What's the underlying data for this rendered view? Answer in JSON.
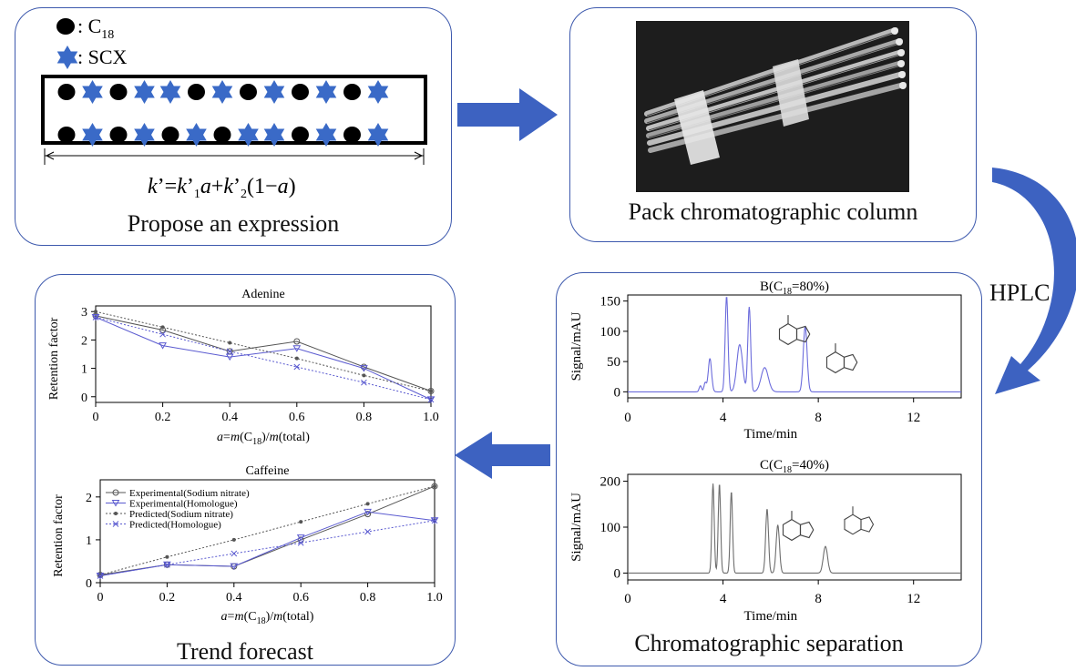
{
  "panels": {
    "expression": {
      "legend": [
        {
          "symbol": "circle",
          "label": ": C",
          "subscript": "18"
        },
        {
          "symbol": "star",
          "label": ": SCX"
        }
      ],
      "formula": {
        "k": "k",
        "prime1": "’=",
        "k1": "k",
        "prime2": "’",
        "sub1": "1",
        "a1": "a",
        "plus": "+",
        "k2": "k",
        "prime3": "’",
        "sub2": "2",
        "paren": "(1−",
        "a2": "a",
        "close": ")"
      },
      "caption": "Propose an expression",
      "column_pattern_top": [
        "circle",
        "star",
        "circle",
        "star",
        "star",
        "circle",
        "star",
        "circle",
        "star",
        "circle",
        "star",
        "circle",
        "star"
      ],
      "column_pattern_bottom": [
        "circle",
        "star",
        "circle",
        "star",
        "circle",
        "star",
        "circle",
        "star",
        "star",
        "circle",
        "star",
        "circle",
        "star"
      ]
    },
    "pack": {
      "caption": "Pack chromatographic column"
    },
    "separation": {
      "caption": "Chromatographic separation"
    },
    "forecast": {
      "caption": "Trend forecast"
    }
  },
  "hplc_label": "HPLC",
  "colors": {
    "border": "#3d59ad",
    "arrow": "#3d62c1",
    "star": "#3a6ac7",
    "blue_series": "#5a5ad0",
    "gray_series": "#555555"
  },
  "chart_data": [
    {
      "id": "adenine",
      "type": "line",
      "title": "Adenine",
      "xlabel": "a=m(C18)/m(total)",
      "xlabel_parts": {
        "a": "a",
        "eq": "=",
        "m1": "m",
        "c": "(C",
        "sub": "18",
        "close": ")/",
        "m2": "m",
        "total": "(total)"
      },
      "ylabel": "Retention factor",
      "xlim": [
        0,
        1.0
      ],
      "ylim": [
        -0.2,
        3.2
      ],
      "xticks": [
        "0",
        "0.2",
        "0.4",
        "0.6",
        "0.8",
        "1.0"
      ],
      "yticks": [
        "0",
        "1",
        "2",
        "3"
      ],
      "x": [
        0,
        0.2,
        0.4,
        0.6,
        0.8,
        1.0
      ],
      "series": [
        {
          "name": "Experimental(Sodium nitrate)",
          "style": "solid-gray-circle",
          "values": [
            2.85,
            2.35,
            1.6,
            1.95,
            1.05,
            0.2
          ]
        },
        {
          "name": "Experimental(Homologue)",
          "style": "solid-blue-triangle",
          "values": [
            2.8,
            1.8,
            1.4,
            1.7,
            1.0,
            -0.1
          ]
        },
        {
          "name": "Predicted(Sodium nitrate)",
          "style": "dotted-gray-star",
          "values": [
            3.0,
            2.45,
            1.9,
            1.35,
            0.75,
            0.2
          ]
        },
        {
          "name": "Predicted(Homologue)",
          "style": "dotted-blue-x",
          "values": [
            2.8,
            2.2,
            1.6,
            1.05,
            0.5,
            -0.1
          ]
        }
      ]
    },
    {
      "id": "caffeine",
      "type": "line",
      "title": "Caffeine",
      "xlabel": "a=m(C18)/m(total)",
      "ylabel": "Retention factor",
      "xlim": [
        0,
        1.0
      ],
      "ylim": [
        0,
        2.4
      ],
      "xticks": [
        "0",
        "0.2",
        "0.4",
        "0.6",
        "0.8",
        "1.0"
      ],
      "yticks": [
        "0",
        "1",
        "2"
      ],
      "legend": "top-left",
      "x": [
        0,
        0.2,
        0.4,
        0.6,
        0.8,
        1.0
      ],
      "series": [
        {
          "name": "Experimental(Sodium nitrate)",
          "style": "solid-gray-circle",
          "values": [
            0.18,
            0.42,
            0.38,
            1.0,
            1.6,
            2.25
          ]
        },
        {
          "name": "Experimental(Homologue)",
          "style": "solid-blue-triangle",
          "values": [
            0.16,
            0.42,
            0.38,
            1.05,
            1.65,
            1.45
          ]
        },
        {
          "name": "Predicted(Sodium nitrate)",
          "style": "dotted-gray-star",
          "values": [
            0.18,
            0.6,
            1.0,
            1.42,
            1.84,
            2.25
          ]
        },
        {
          "name": "Predicted(Homologue)",
          "style": "dotted-blue-x",
          "values": [
            0.16,
            0.42,
            0.68,
            0.93,
            1.19,
            1.45
          ]
        }
      ]
    },
    {
      "id": "chromB",
      "type": "line",
      "title": "B(C18=80%)",
      "title_parts": {
        "pre": "B(C",
        "sub": "18",
        "post": "=80%)"
      },
      "xlabel": "Time/min",
      "ylabel": "Signal/mAU",
      "xlim": [
        0,
        14
      ],
      "ylim": [
        -10,
        160
      ],
      "xticks": [
        "0",
        "4",
        "8",
        "12"
      ],
      "yticks": [
        "0",
        "50",
        "100",
        "150"
      ],
      "peaks": [
        {
          "t": 3.05,
          "h": 10,
          "w": 0.05
        },
        {
          "t": 3.25,
          "h": 15,
          "w": 0.05
        },
        {
          "t": 3.45,
          "h": 55,
          "w": 0.07
        },
        {
          "t": 4.15,
          "h": 158,
          "w": 0.06
        },
        {
          "t": 4.7,
          "h": 78,
          "w": 0.12
        },
        {
          "t": 5.1,
          "h": 140,
          "w": 0.06
        },
        {
          "t": 5.75,
          "h": 40,
          "w": 0.15
        },
        {
          "t": 7.45,
          "h": 108,
          "w": 0.08
        }
      ]
    },
    {
      "id": "chromC",
      "type": "line",
      "title": "C(C18=40%)",
      "title_parts": {
        "pre": "C(C",
        "sub": "18",
        "post": "=40%)"
      },
      "xlabel": "Time/min",
      "ylabel": "Signal/mAU",
      "xlim": [
        0,
        14
      ],
      "ylim": [
        -15,
        215
      ],
      "xticks": [
        "0",
        "4",
        "8",
        "12"
      ],
      "yticks": [
        "0",
        "100",
        "200"
      ],
      "peaks": [
        {
          "t": 3.58,
          "h": 195,
          "w": 0.05
        },
        {
          "t": 3.85,
          "h": 195,
          "w": 0.05
        },
        {
          "t": 4.35,
          "h": 178,
          "w": 0.05
        },
        {
          "t": 5.85,
          "h": 140,
          "w": 0.06
        },
        {
          "t": 6.3,
          "h": 105,
          "w": 0.07
        },
        {
          "t": 8.3,
          "h": 58,
          "w": 0.09
        }
      ]
    }
  ]
}
